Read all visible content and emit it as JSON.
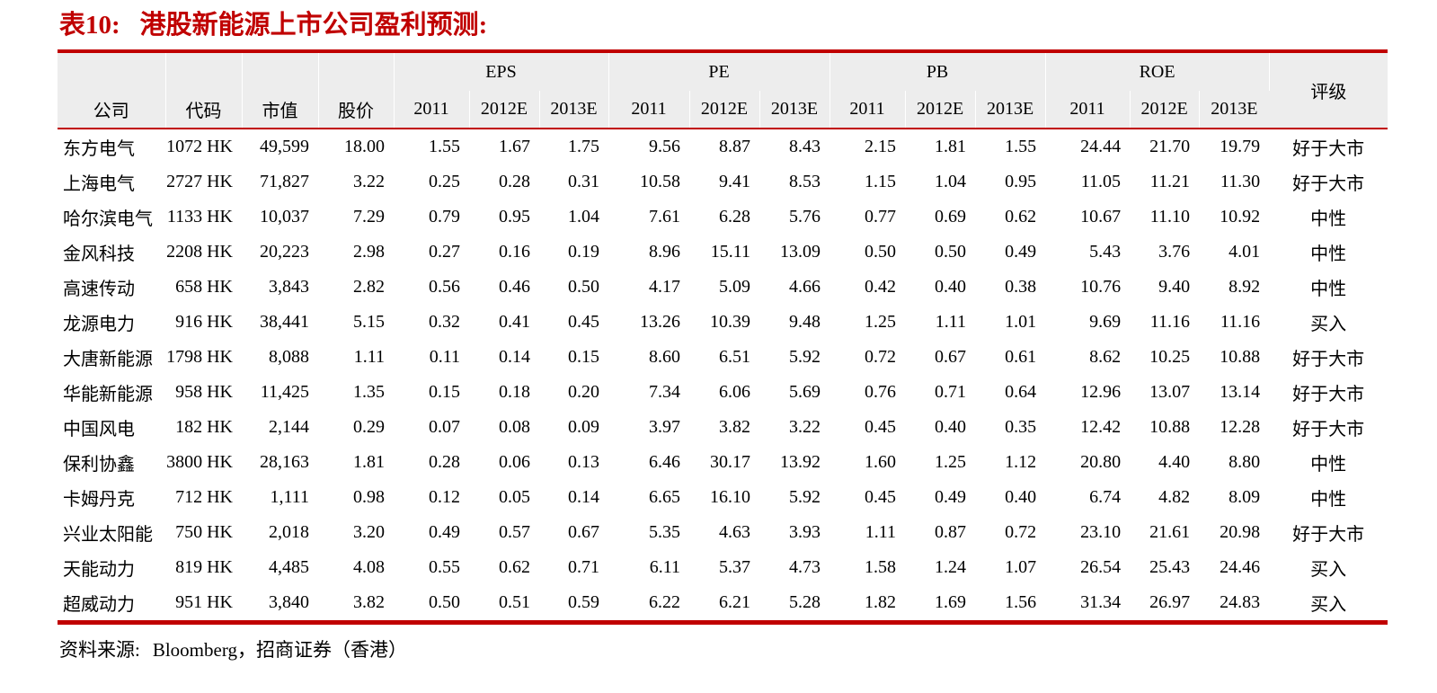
{
  "page": {
    "title_label": "表10:",
    "title_text": "港股新能源上市公司盈利预测:",
    "source_label": "资料来源:",
    "source_text": "Bloomberg，招商证券（香港）"
  },
  "colors": {
    "accent_red": "#c00000",
    "header_bg": "#ededed"
  },
  "table": {
    "base_columns": [
      "公司",
      "代码",
      "市值",
      "股价"
    ],
    "groups": [
      "EPS",
      "PE",
      "PB",
      "ROE"
    ],
    "year_columns": [
      "2011",
      "2012E",
      "2013E"
    ],
    "rating_column": "评级",
    "rows": [
      {
        "company": "东方电气",
        "code": "1072 HK",
        "market_cap": "49,599",
        "price": "18.00",
        "eps": [
          "1.55",
          "1.67",
          "1.75"
        ],
        "pe": [
          "9.56",
          "8.87",
          "8.43"
        ],
        "pb": [
          "2.15",
          "1.81",
          "1.55"
        ],
        "roe": [
          "24.44",
          "21.70",
          "19.79"
        ],
        "rating": "好于大市"
      },
      {
        "company": "上海电气",
        "code": "2727 HK",
        "market_cap": "71,827",
        "price": "3.22",
        "eps": [
          "0.25",
          "0.28",
          "0.31"
        ],
        "pe": [
          "10.58",
          "9.41",
          "8.53"
        ],
        "pb": [
          "1.15",
          "1.04",
          "0.95"
        ],
        "roe": [
          "11.05",
          "11.21",
          "11.30"
        ],
        "rating": "好于大市"
      },
      {
        "company": "哈尔滨电气",
        "code": "1133 HK",
        "market_cap": "10,037",
        "price": "7.29",
        "eps": [
          "0.79",
          "0.95",
          "1.04"
        ],
        "pe": [
          "7.61",
          "6.28",
          "5.76"
        ],
        "pb": [
          "0.77",
          "0.69",
          "0.62"
        ],
        "roe": [
          "10.67",
          "11.10",
          "10.92"
        ],
        "rating": "中性"
      },
      {
        "company": "金风科技",
        "code": "2208 HK",
        "market_cap": "20,223",
        "price": "2.98",
        "eps": [
          "0.27",
          "0.16",
          "0.19"
        ],
        "pe": [
          "8.96",
          "15.11",
          "13.09"
        ],
        "pb": [
          "0.50",
          "0.50",
          "0.49"
        ],
        "roe": [
          "5.43",
          "3.76",
          "4.01"
        ],
        "rating": "中性"
      },
      {
        "company": "高速传动",
        "code": "658 HK",
        "market_cap": "3,843",
        "price": "2.82",
        "eps": [
          "0.56",
          "0.46",
          "0.50"
        ],
        "pe": [
          "4.17",
          "5.09",
          "4.66"
        ],
        "pb": [
          "0.42",
          "0.40",
          "0.38"
        ],
        "roe": [
          "10.76",
          "9.40",
          "8.92"
        ],
        "rating": "中性"
      },
      {
        "company": "龙源电力",
        "code": "916 HK",
        "market_cap": "38,441",
        "price": "5.15",
        "eps": [
          "0.32",
          "0.41",
          "0.45"
        ],
        "pe": [
          "13.26",
          "10.39",
          "9.48"
        ],
        "pb": [
          "1.25",
          "1.11",
          "1.01"
        ],
        "roe": [
          "9.69",
          "11.16",
          "11.16"
        ],
        "rating": "买入"
      },
      {
        "company": "大唐新能源",
        "code": "1798 HK",
        "market_cap": "8,088",
        "price": "1.11",
        "eps": [
          "0.11",
          "0.14",
          "0.15"
        ],
        "pe": [
          "8.60",
          "6.51",
          "5.92"
        ],
        "pb": [
          "0.72",
          "0.67",
          "0.61"
        ],
        "roe": [
          "8.62",
          "10.25",
          "10.88"
        ],
        "rating": "好于大市"
      },
      {
        "company": "华能新能源",
        "code": "958 HK",
        "market_cap": "11,425",
        "price": "1.35",
        "eps": [
          "0.15",
          "0.18",
          "0.20"
        ],
        "pe": [
          "7.34",
          "6.06",
          "5.69"
        ],
        "pb": [
          "0.76",
          "0.71",
          "0.64"
        ],
        "roe": [
          "12.96",
          "13.07",
          "13.14"
        ],
        "rating": "好于大市"
      },
      {
        "company": "中国风电",
        "code": "182 HK",
        "market_cap": "2,144",
        "price": "0.29",
        "eps": [
          "0.07",
          "0.08",
          "0.09"
        ],
        "pe": [
          "3.97",
          "3.82",
          "3.22"
        ],
        "pb": [
          "0.45",
          "0.40",
          "0.35"
        ],
        "roe": [
          "12.42",
          "10.88",
          "12.28"
        ],
        "rating": "好于大市"
      },
      {
        "company": "保利协鑫",
        "code": "3800 HK",
        "market_cap": "28,163",
        "price": "1.81",
        "eps": [
          "0.28",
          "0.06",
          "0.13"
        ],
        "pe": [
          "6.46",
          "30.17",
          "13.92"
        ],
        "pb": [
          "1.60",
          "1.25",
          "1.12"
        ],
        "roe": [
          "20.80",
          "4.40",
          "8.80"
        ],
        "rating": "中性"
      },
      {
        "company": "卡姆丹克",
        "code": "712 HK",
        "market_cap": "1,111",
        "price": "0.98",
        "eps": [
          "0.12",
          "0.05",
          "0.14"
        ],
        "pe": [
          "6.65",
          "16.10",
          "5.92"
        ],
        "pb": [
          "0.45",
          "0.49",
          "0.40"
        ],
        "roe": [
          "6.74",
          "4.82",
          "8.09"
        ],
        "rating": "中性"
      },
      {
        "company": "兴业太阳能",
        "code": "750 HK",
        "market_cap": "2,018",
        "price": "3.20",
        "eps": [
          "0.49",
          "0.57",
          "0.67"
        ],
        "pe": [
          "5.35",
          "4.63",
          "3.93"
        ],
        "pb": [
          "1.11",
          "0.87",
          "0.72"
        ],
        "roe": [
          "23.10",
          "21.61",
          "20.98"
        ],
        "rating": "好于大市"
      },
      {
        "company": "天能动力",
        "code": "819 HK",
        "market_cap": "4,485",
        "price": "4.08",
        "eps": [
          "0.55",
          "0.62",
          "0.71"
        ],
        "pe": [
          "6.11",
          "5.37",
          "4.73"
        ],
        "pb": [
          "1.58",
          "1.24",
          "1.07"
        ],
        "roe": [
          "26.54",
          "25.43",
          "24.46"
        ],
        "rating": "买入"
      },
      {
        "company": "超威动力",
        "code": "951 HK",
        "market_cap": "3,840",
        "price": "3.82",
        "eps": [
          "0.50",
          "0.51",
          "0.59"
        ],
        "pe": [
          "6.22",
          "6.21",
          "5.28"
        ],
        "pb": [
          "1.82",
          "1.69",
          "1.56"
        ],
        "roe": [
          "31.34",
          "26.97",
          "24.83"
        ],
        "rating": "买入"
      }
    ]
  }
}
